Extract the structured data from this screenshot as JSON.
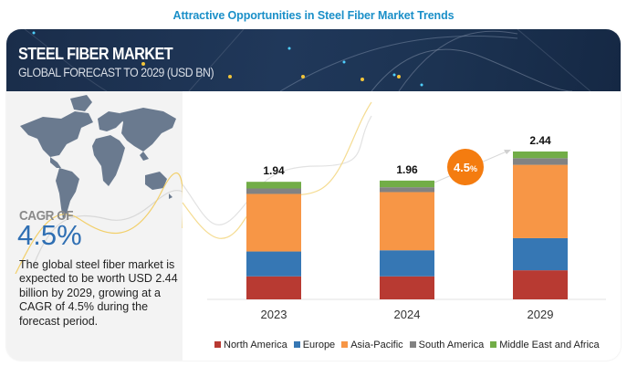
{
  "page_title": "Attractive Opportunities in Steel Fiber Market Trends",
  "header": {
    "title": "STEEL FIBER MARKET",
    "subtitle": "GLOBAL FORECAST TO 2029 (USD BN)"
  },
  "left_panel": {
    "map_icon": "world-map-icon",
    "cagr_label": "CAGR OF",
    "cagr_value": "4.5%",
    "description": "The global steel fiber market is expected to be worth USD 2.44 billion by 2029, growing at a CAGR of 4.5% during the forecast period."
  },
  "chart_data": {
    "type": "bar",
    "stacked": true,
    "title": "",
    "xlabel": "",
    "ylabel": "USD BN",
    "categories": [
      "2023",
      "2024",
      "2029"
    ],
    "totals": [
      "1.94",
      "1.96",
      "2.44"
    ],
    "total_values": [
      1.94,
      1.96,
      2.44
    ],
    "series": [
      {
        "name": "North America",
        "color": "#b83a32",
        "values": [
          0.38,
          0.38,
          0.48
        ]
      },
      {
        "name": "Europe",
        "color": "#3677b4",
        "values": [
          0.41,
          0.43,
          0.53
        ]
      },
      {
        "name": "Asia-Pacific",
        "color": "#f79646",
        "values": [
          0.95,
          0.96,
          1.21
        ]
      },
      {
        "name": "South America",
        "color": "#828282",
        "values": [
          0.09,
          0.08,
          0.11
        ]
      },
      {
        "name": "Middle East and Africa",
        "color": "#72ad47",
        "values": [
          0.11,
          0.11,
          0.11
        ]
      }
    ],
    "ylim": [
      0,
      2.44
    ],
    "grid": false,
    "legend_position": "bottom",
    "annotation": {
      "value": "4.5",
      "unit": "%",
      "color": "#f47c10"
    }
  },
  "colors": {
    "title_blue": "#1a8fc8",
    "cagr_blue": "#2f6fb3",
    "header_navy": "#1c3352"
  }
}
